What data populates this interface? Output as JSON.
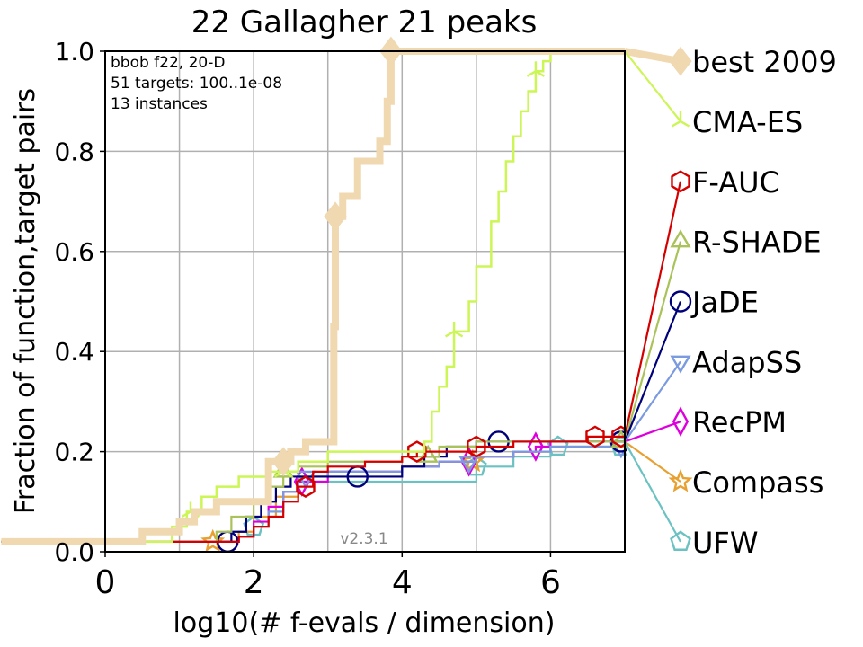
{
  "chart_data": {
    "type": "line",
    "title": "22 Gallagher 21 peaks",
    "xlabel": "log10(# f-evals / dimension)",
    "ylabel": "Fraction of function,target pairs",
    "xlim": [
      0,
      7
    ],
    "ylim": [
      0,
      1
    ],
    "x_ticks": [
      "0",
      "2",
      "4",
      "6"
    ],
    "y_ticks": [
      "0.0",
      "0.2",
      "0.4",
      "0.6",
      "0.8",
      "1.0"
    ],
    "grid": true,
    "annotation_lines": [
      "bbob f22, 20-D",
      "51 targets: 100..1e-08",
      "13 instances"
    ],
    "version": "v2.3.1",
    "series": [
      {
        "name": "best 2009",
        "color": "#f0d8b0",
        "marker": "diamond",
        "width": 8,
        "end_y": 0.98,
        "x": [
          -1.4,
          0.3,
          0.5,
          1.0,
          1.2,
          1.5,
          2.2,
          2.5,
          2.7,
          3.0,
          3.08,
          3.1,
          3.2,
          3.4,
          3.5,
          3.7,
          3.8,
          3.85,
          7.0
        ],
        "y": [
          0.02,
          0.02,
          0.04,
          0.06,
          0.08,
          0.1,
          0.18,
          0.2,
          0.22,
          0.22,
          0.45,
          0.67,
          0.71,
          0.78,
          0.78,
          0.82,
          0.9,
          1.0,
          1.0
        ],
        "markers_at": [
          2.4,
          3.1,
          3.85
        ]
      },
      {
        "name": "CMA-ES",
        "color": "#ccf556",
        "marker": "tri-down",
        "width": 2.5,
        "end_y": 0.86,
        "x": [
          -1.4,
          0.5,
          0.9,
          1.1,
          1.3,
          1.5,
          1.8,
          2.2,
          2.6,
          3.0,
          4.3,
          4.4,
          4.5,
          4.6,
          4.7,
          4.9,
          5.0,
          5.2,
          5.3,
          5.4,
          5.5,
          5.6,
          5.7,
          5.8,
          5.9,
          6.0,
          7.0
        ],
        "y": [
          0.02,
          0.02,
          0.05,
          0.08,
          0.11,
          0.13,
          0.15,
          0.16,
          0.18,
          0.2,
          0.22,
          0.28,
          0.33,
          0.37,
          0.44,
          0.5,
          0.57,
          0.66,
          0.72,
          0.78,
          0.83,
          0.88,
          0.92,
          0.96,
          0.98,
          1.0,
          1.0
        ],
        "markers_at": [
          1.15,
          2.4,
          4.7,
          5.8
        ]
      },
      {
        "name": "F-AUC",
        "color": "#d40000",
        "marker": "hexagon",
        "width": 2.2,
        "end_y": 0.74,
        "x": [
          -1.4,
          1.5,
          1.8,
          2.0,
          2.2,
          2.4,
          2.6,
          2.8,
          3.0,
          3.5,
          4.0,
          4.2,
          5.0,
          5.5,
          6.0,
          6.5,
          7.0
        ],
        "y": [
          0.02,
          0.02,
          0.03,
          0.05,
          0.07,
          0.1,
          0.13,
          0.16,
          0.17,
          0.18,
          0.19,
          0.2,
          0.21,
          0.22,
          0.22,
          0.23,
          0.23
        ],
        "markers_at": [
          2.7,
          4.2,
          5.0,
          6.6,
          6.95
        ]
      },
      {
        "name": "R-SHADE",
        "color": "#aac25a",
        "marker": "triangle",
        "width": 2.2,
        "end_y": 0.62,
        "x": [
          -1.4,
          1.2,
          1.5,
          1.7,
          2.0,
          2.2,
          2.4,
          2.6,
          3.0,
          3.5,
          4.0,
          4.5,
          5.0,
          5.5,
          6.0,
          7.0
        ],
        "y": [
          0.02,
          0.02,
          0.04,
          0.07,
          0.1,
          0.13,
          0.16,
          0.17,
          0.18,
          0.18,
          0.19,
          0.21,
          0.22,
          0.22,
          0.22,
          0.22
        ],
        "markers_at": [
          2.4,
          4.35,
          6.95
        ]
      },
      {
        "name": "JaDE",
        "color": "#00007a",
        "marker": "circle",
        "width": 2.2,
        "end_y": 0.5,
        "x": [
          -1.4,
          1.5,
          1.7,
          1.9,
          2.1,
          2.3,
          2.5,
          2.7,
          3.0,
          3.5,
          4.0,
          4.3,
          4.6,
          5.0,
          5.3,
          6.0,
          7.0
        ],
        "y": [
          0.02,
          0.02,
          0.04,
          0.07,
          0.1,
          0.13,
          0.15,
          0.15,
          0.15,
          0.15,
          0.17,
          0.19,
          0.21,
          0.22,
          0.22,
          0.22,
          0.22
        ],
        "markers_at": [
          1.65,
          3.4,
          5.3,
          6.95
        ]
      },
      {
        "name": "AdapSS",
        "color": "#7b9be0",
        "marker": "tri-down-open",
        "width": 2.2,
        "end_y": 0.38,
        "x": [
          -1.4,
          1.6,
          1.8,
          2.0,
          2.2,
          2.4,
          2.6,
          3.0,
          3.5,
          4.0,
          4.5,
          5.0,
          5.5,
          6.0,
          7.0
        ],
        "y": [
          0.02,
          0.02,
          0.03,
          0.05,
          0.08,
          0.12,
          0.15,
          0.16,
          0.16,
          0.17,
          0.18,
          0.19,
          0.2,
          0.21,
          0.22
        ],
        "markers_at": [
          2.7,
          4.9,
          6.95
        ]
      },
      {
        "name": "RecPM",
        "color": "#dd00dd",
        "marker": "diamond-open",
        "width": 2.2,
        "end_y": 0.26,
        "x": [
          -1.4,
          1.6,
          1.8,
          2.0,
          2.2,
          2.4,
          2.6,
          3.0,
          3.5,
          4.0,
          4.5,
          5.0,
          5.5,
          5.8,
          6.0,
          7.0
        ],
        "y": [
          0.02,
          0.02,
          0.03,
          0.06,
          0.09,
          0.12,
          0.14,
          0.16,
          0.16,
          0.17,
          0.18,
          0.19,
          0.2,
          0.21,
          0.22,
          0.22
        ],
        "markers_at": [
          2.65,
          4.9,
          5.8
        ]
      },
      {
        "name": "Compass",
        "color": "#e8a030",
        "marker": "star",
        "width": 2.2,
        "end_y": 0.14,
        "x": [
          -1.4,
          1.3,
          1.5,
          1.8,
          2.0,
          2.3,
          2.6,
          3.0,
          3.5,
          4.0,
          4.5,
          5.0,
          5.5,
          6.0,
          7.0
        ],
        "y": [
          0.02,
          0.02,
          0.02,
          0.04,
          0.07,
          0.11,
          0.15,
          0.16,
          0.16,
          0.17,
          0.18,
          0.19,
          0.2,
          0.21,
          0.22
        ],
        "markers_at": [
          1.45,
          4.95
        ]
      },
      {
        "name": "UFW",
        "color": "#6cc2c2",
        "marker": "pentagon",
        "width": 2.2,
        "end_y": 0.02,
        "x": [
          -1.4,
          1.5,
          1.8,
          2.0,
          2.2,
          2.4,
          2.6,
          3.0,
          3.5,
          4.0,
          4.5,
          5.0,
          5.5,
          6.0,
          7.0
        ],
        "y": [
          0.02,
          0.02,
          0.03,
          0.05,
          0.08,
          0.12,
          0.14,
          0.14,
          0.14,
          0.14,
          0.14,
          0.17,
          0.19,
          0.21,
          0.22
        ],
        "markers_at": [
          2.0,
          5.0,
          6.1,
          6.95
        ]
      }
    ]
  }
}
